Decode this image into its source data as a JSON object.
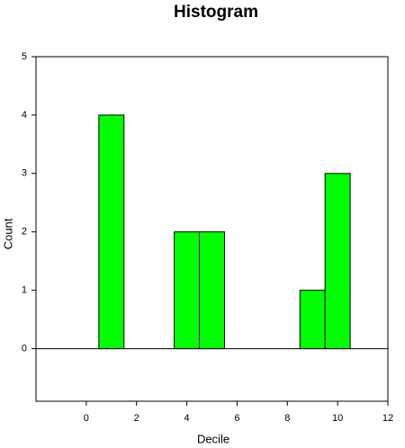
{
  "chart_data": {
    "type": "histogram",
    "title": "Histogram",
    "x_label": "Decile",
    "y_label": "Count",
    "bins": [
      0.5,
      1.5,
      2.5,
      3.5,
      4.5,
      5.5,
      6.5,
      7.5,
      8.5,
      9.5,
      10.5
    ],
    "values": [
      4,
      0,
      0,
      2,
      2,
      0,
      0,
      0,
      1,
      3
    ],
    "color": "#00ff00",
    "xlim": [
      -2,
      12
    ],
    "xticks": [
      0,
      2,
      4,
      6,
      8,
      10,
      12
    ],
    "ylim": [
      -0.9,
      5
    ],
    "yticks": [
      0,
      1,
      2,
      3,
      4,
      5
    ]
  }
}
